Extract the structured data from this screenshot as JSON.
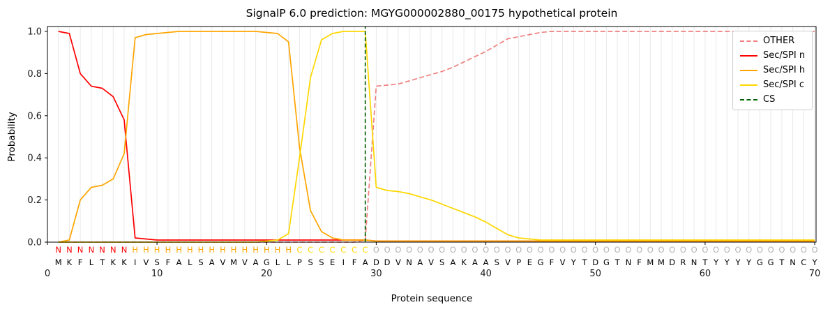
{
  "title": "SignalP 6.0 prediction: MGYG000002880_00175 hypothetical protein",
  "chart_data": {
    "type": "line",
    "title": "SignalP 6.0 prediction: MGYG000002880_00175 hypothetical protein",
    "xlabel": "Protein sequence",
    "ylabel": "Probability",
    "xlim": [
      0,
      70
    ],
    "ylim": [
      0.0,
      1.0
    ],
    "x_ticks": [
      0,
      10,
      20,
      30,
      40,
      50,
      60,
      70
    ],
    "y_ticks": [
      0.0,
      0.2,
      0.4,
      0.6,
      0.8,
      1.0
    ],
    "grid": "vertical gridline at every residue position",
    "legend_position": "upper right",
    "x": [
      1,
      2,
      3,
      4,
      5,
      6,
      7,
      8,
      9,
      10,
      11,
      12,
      13,
      14,
      15,
      16,
      17,
      18,
      19,
      20,
      21,
      22,
      23,
      24,
      25,
      26,
      27,
      28,
      29,
      30,
      31,
      32,
      33,
      34,
      35,
      36,
      37,
      38,
      39,
      40,
      41,
      42,
      43,
      44,
      45,
      46,
      47,
      48,
      49,
      50,
      51,
      52,
      53,
      54,
      55,
      56,
      57,
      58,
      59,
      60,
      61,
      62,
      63,
      64,
      65,
      66,
      67,
      68,
      69,
      70
    ],
    "series": [
      {
        "name": "OTHER",
        "color": "#f08080",
        "dash": true,
        "values": [
          0,
          0,
          0,
          0,
          0,
          0,
          0,
          0,
          0,
          0,
          0,
          0,
          0,
          0,
          0,
          0,
          0,
          0,
          0,
          0,
          0,
          0,
          0,
          0,
          0,
          0,
          0,
          0,
          0.01,
          0.74,
          0.745,
          0.75,
          0.765,
          0.78,
          0.795,
          0.81,
          0.83,
          0.855,
          0.88,
          0.905,
          0.935,
          0.965,
          0.975,
          0.985,
          0.995,
          1,
          1,
          1,
          1,
          1,
          1,
          1,
          1,
          1,
          1,
          1,
          1,
          1,
          1,
          1,
          1,
          1,
          1,
          1,
          1,
          1,
          1,
          1,
          1,
          1
        ]
      },
      {
        "name": "Sec/SPI n",
        "color": "#ff0000",
        "dash": false,
        "values": [
          1,
          0.99,
          0.8,
          0.74,
          0.73,
          0.69,
          0.58,
          0.02,
          0.015,
          0.01,
          0.01,
          0.01,
          0.01,
          0.01,
          0.01,
          0.01,
          0.01,
          0.01,
          0.01,
          0.01,
          0.01,
          0.01,
          0.01,
          0.01,
          0.01,
          0.01,
          0.01,
          0.01,
          0.01,
          0.005,
          0.005,
          0.005,
          0.005,
          0.005,
          0.005,
          0.005,
          0.005,
          0.005,
          0.005,
          0.005,
          0.005,
          0.005,
          0.005,
          0.005,
          0.005,
          0.005,
          0.005,
          0.005,
          0.005,
          0.005,
          0.005,
          0.005,
          0.005,
          0.005,
          0.005,
          0.005,
          0.005,
          0.005,
          0.005,
          0.005,
          0.005,
          0.005,
          0.005,
          0.005,
          0.005,
          0.005,
          0.005,
          0.005,
          0.005,
          0.005
        ]
      },
      {
        "name": "Sec/SPI h",
        "color": "#ffa500",
        "dash": false,
        "values": [
          0,
          0.01,
          0.2,
          0.26,
          0.27,
          0.3,
          0.42,
          0.97,
          0.985,
          0.99,
          0.995,
          1,
          1,
          1,
          1,
          1,
          1,
          1,
          1,
          0.995,
          0.99,
          0.95,
          0.45,
          0.15,
          0.05,
          0.02,
          0.01,
          0.01,
          0.01,
          0.005,
          0.005,
          0.005,
          0.005,
          0.005,
          0.005,
          0.005,
          0.005,
          0.005,
          0.005,
          0.005,
          0.005,
          0.005,
          0.005,
          0.005,
          0.005,
          0.005,
          0.005,
          0.005,
          0.005,
          0.005,
          0.005,
          0.005,
          0.005,
          0.005,
          0.005,
          0.005,
          0.005,
          0.005,
          0.005,
          0.005,
          0.005,
          0.005,
          0.005,
          0.005,
          0.005,
          0.005,
          0.005,
          0.005,
          0.005,
          0.005
        ]
      },
      {
        "name": "Sec/SPI c",
        "color": "#ffd700",
        "dash": false,
        "values": [
          0,
          0,
          0,
          0,
          0,
          0,
          0,
          0,
          0,
          0,
          0,
          0,
          0,
          0,
          0,
          0,
          0,
          0,
          0,
          0.005,
          0.01,
          0.04,
          0.4,
          0.78,
          0.96,
          0.99,
          1,
          1,
          1,
          0.26,
          0.245,
          0.24,
          0.23,
          0.215,
          0.2,
          0.18,
          0.16,
          0.14,
          0.12,
          0.095,
          0.065,
          0.035,
          0.02,
          0.015,
          0.01,
          0.01,
          0.01,
          0.01,
          0.01,
          0.01,
          0.01,
          0.01,
          0.01,
          0.01,
          0.01,
          0.01,
          0.01,
          0.01,
          0.01,
          0.01,
          0.01,
          0.01,
          0.01,
          0.01,
          0.01,
          0.01,
          0.01,
          0.01,
          0.01,
          0.01
        ]
      }
    ],
    "cs_marker": {
      "name": "CS",
      "position": 29,
      "color": "#006400",
      "dash": true
    },
    "sequence": "MKFLTKKIVSFALSAVMVAGLLPSSEIFADDVNAVSAKAASVPEGFVYTDGTNFMMDRNTYYYYGGTNCY",
    "regions": "NNNNNNNHHHHHHHHHHHHHHHCCCCCCCOOOOOOOOOOOOOOOOOOOOOOOOOOOOOOOOOOOOOOOOO",
    "region_colors": {
      "N": "#ff0000",
      "H": "#ffa500",
      "C": "#ffd700",
      "O": "#b3b3b3"
    },
    "sequence_color": "#000000",
    "colors": {
      "grid": "#e8e8e8",
      "axis": "#000000",
      "background": "#ffffff",
      "legend_border": "#cccccc"
    }
  }
}
